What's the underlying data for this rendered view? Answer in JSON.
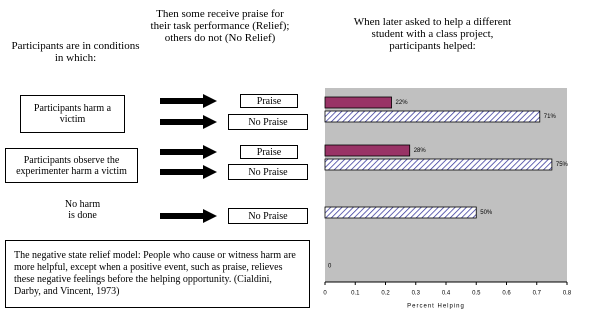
{
  "headers": [
    "Participants are in conditions in which:",
    "Then some receive praise for their task performance (Relief); others do not (No Relief)",
    "When later asked to help a different student with a class project, participants helped:"
  ],
  "conditions": [
    "Participants harm a victim",
    "Participants observe the experimenter harm a victim",
    "No harm is done"
  ],
  "outcomes": [
    "Praise",
    "No Praise",
    "Praise",
    "No Praise",
    "No Praise"
  ],
  "note": "The negative state relief model: People who cause or witness harm are more helpful, except when a positive event, such as praise, relieves these negative feelings before the helping opportunity. (Cialdini, Darby, and Vincent, 1973)",
  "chart_data": {
    "type": "bar",
    "orientation": "horizontal",
    "categories": [
      null,
      null,
      null
    ],
    "series": [
      {
        "color": "#993366",
        "pattern": "solid",
        "values": [
          0.22,
          0.28,
          null
        ],
        "value_labels": [
          "22%",
          "28%",
          null
        ]
      },
      {
        "color": "#333399",
        "pattern": "hatch",
        "values": [
          0.71,
          0.75,
          0.5
        ],
        "value_labels": [
          "71%",
          "75%",
          "50%"
        ]
      }
    ],
    "annotation": "0",
    "xlabel": "Percent Helping",
    "xlim": [
      0,
      0.8
    ],
    "xticks": [
      0,
      0.1,
      0.2,
      0.3,
      0.4,
      0.5,
      0.6,
      0.7,
      0.8
    ],
    "plot_background": "#c0c0c0"
  }
}
